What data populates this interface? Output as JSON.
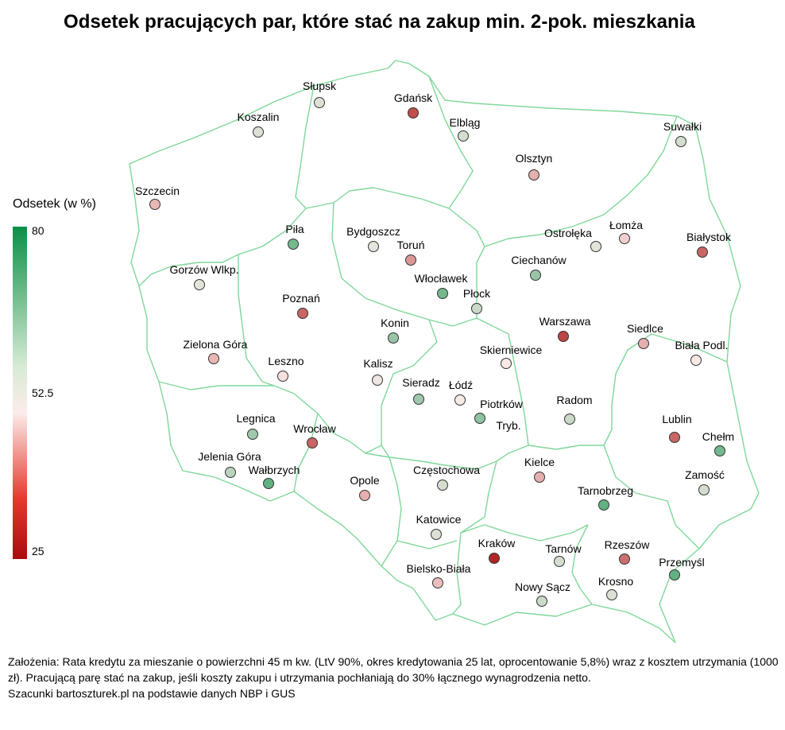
{
  "title": "Odsetek pracujących par, które stać na zakup min. 2-pok. mieszkania",
  "legend": {
    "title": "Odsetek (w %)",
    "ticks": [
      "80",
      "52.5",
      "25"
    ],
    "range": [
      25,
      80
    ],
    "colors": {
      "high": "#0b8f47",
      "mid": "#fbecea",
      "low": "#a80d0d"
    }
  },
  "map": {
    "border_color": "#7fd79a",
    "cities": [
      {
        "name": "Słupsk",
        "value": 56
      },
      {
        "name": "Gdańsk",
        "value": 33
      },
      {
        "name": "Koszalin",
        "value": 56
      },
      {
        "name": "Elbląg",
        "value": 57
      },
      {
        "name": "Suwałki",
        "value": 57
      },
      {
        "name": "Olsztyn",
        "value": 45
      },
      {
        "name": "Szczecin",
        "value": 46
      },
      {
        "name": "Piła",
        "value": 68
      },
      {
        "name": "Bydgoszcz",
        "value": 55
      },
      {
        "name": "Toruń",
        "value": 42
      },
      {
        "name": "Ostrołęka",
        "value": 55
      },
      {
        "name": "Łomża",
        "value": 49
      },
      {
        "name": "Białystok",
        "value": 36
      },
      {
        "name": "Ciechanów",
        "value": 64
      },
      {
        "name": "Gorzów Wlkp.",
        "value": 55
      },
      {
        "name": "Włocławek",
        "value": 68
      },
      {
        "name": "Płock",
        "value": 58
      },
      {
        "name": "Poznań",
        "value": 36
      },
      {
        "name": "Warszawa",
        "value": 32
      },
      {
        "name": "Konin",
        "value": 64
      },
      {
        "name": "Siedlce",
        "value": 45
      },
      {
        "name": "Zielona Góra",
        "value": 46
      },
      {
        "name": "Skierniewice",
        "value": 52
      },
      {
        "name": "Biała Podl.",
        "value": 52
      },
      {
        "name": "Leszno",
        "value": 51
      },
      {
        "name": "Kalisz",
        "value": 54
      },
      {
        "name": "Sieradz",
        "value": 63
      },
      {
        "name": "Łódź",
        "value": 53
      },
      {
        "name": "Piotrków Tryb.",
        "value": 65
      },
      {
        "name": "Radom",
        "value": 58
      },
      {
        "name": "Legnica",
        "value": 63
      },
      {
        "name": "Wrocław",
        "value": 36
      },
      {
        "name": "Lublin",
        "value": 36
      },
      {
        "name": "Chełm",
        "value": 68
      },
      {
        "name": "Jelenia Góra",
        "value": 60
      },
      {
        "name": "Wałbrzych",
        "value": 70
      },
      {
        "name": "Kielce",
        "value": 45
      },
      {
        "name": "Opole",
        "value": 45
      },
      {
        "name": "Częstochowa",
        "value": 57
      },
      {
        "name": "Zamość",
        "value": 57
      },
      {
        "name": "Tarnobrzeg",
        "value": 70
      },
      {
        "name": "Katowice",
        "value": 56
      },
      {
        "name": "Kraków",
        "value": 28
      },
      {
        "name": "Tarnów",
        "value": 57
      },
      {
        "name": "Rzeszów",
        "value": 37
      },
      {
        "name": "Przemyśl",
        "value": 70
      },
      {
        "name": "Bielsko-Biała",
        "value": 47
      },
      {
        "name": "Nowy Sącz",
        "value": 58
      },
      {
        "name": "Krosno",
        "value": 56
      }
    ]
  },
  "notes": {
    "assumptions": "Założenia: Rata kredytu za mieszanie o powierzchni 45 m kw. (LtV 90%, okres kredytowania 25 lat, oprocentowanie 5,8%) wraz z kosztem utrzymania (1000 zł). Pracującą parę stać na zakup, jeśli koszty zakupu i utrzymania pochłaniają do 30% łącznego wynagrodzenia netto.",
    "source": "Szacunki bartoszturek.pl na podstawie danych NBP i GUS"
  }
}
